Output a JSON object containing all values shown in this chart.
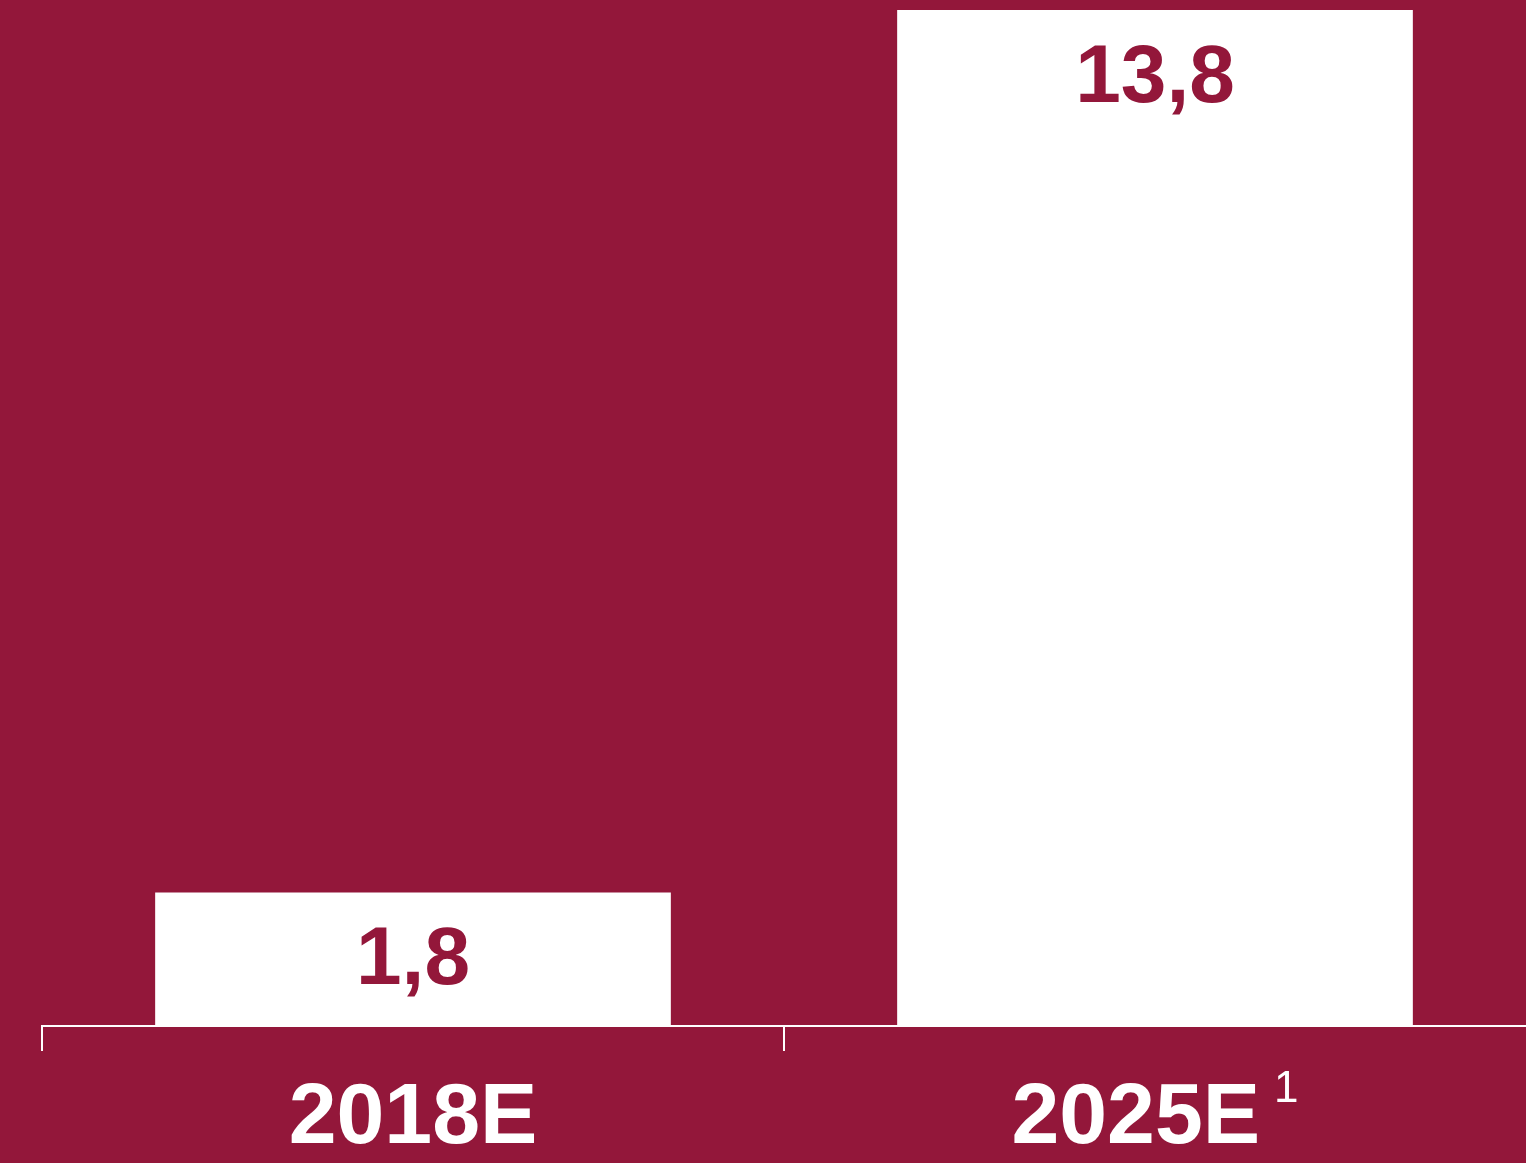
{
  "chart_data": {
    "type": "bar",
    "categories": [
      "2018E",
      "2025E$^{1}$"
    ],
    "values": [
      1.8,
      13.8
    ],
    "color": "#ffffff",
    "value_labels": [
      "1,8",
      "13,8"
    ]
  }
}
